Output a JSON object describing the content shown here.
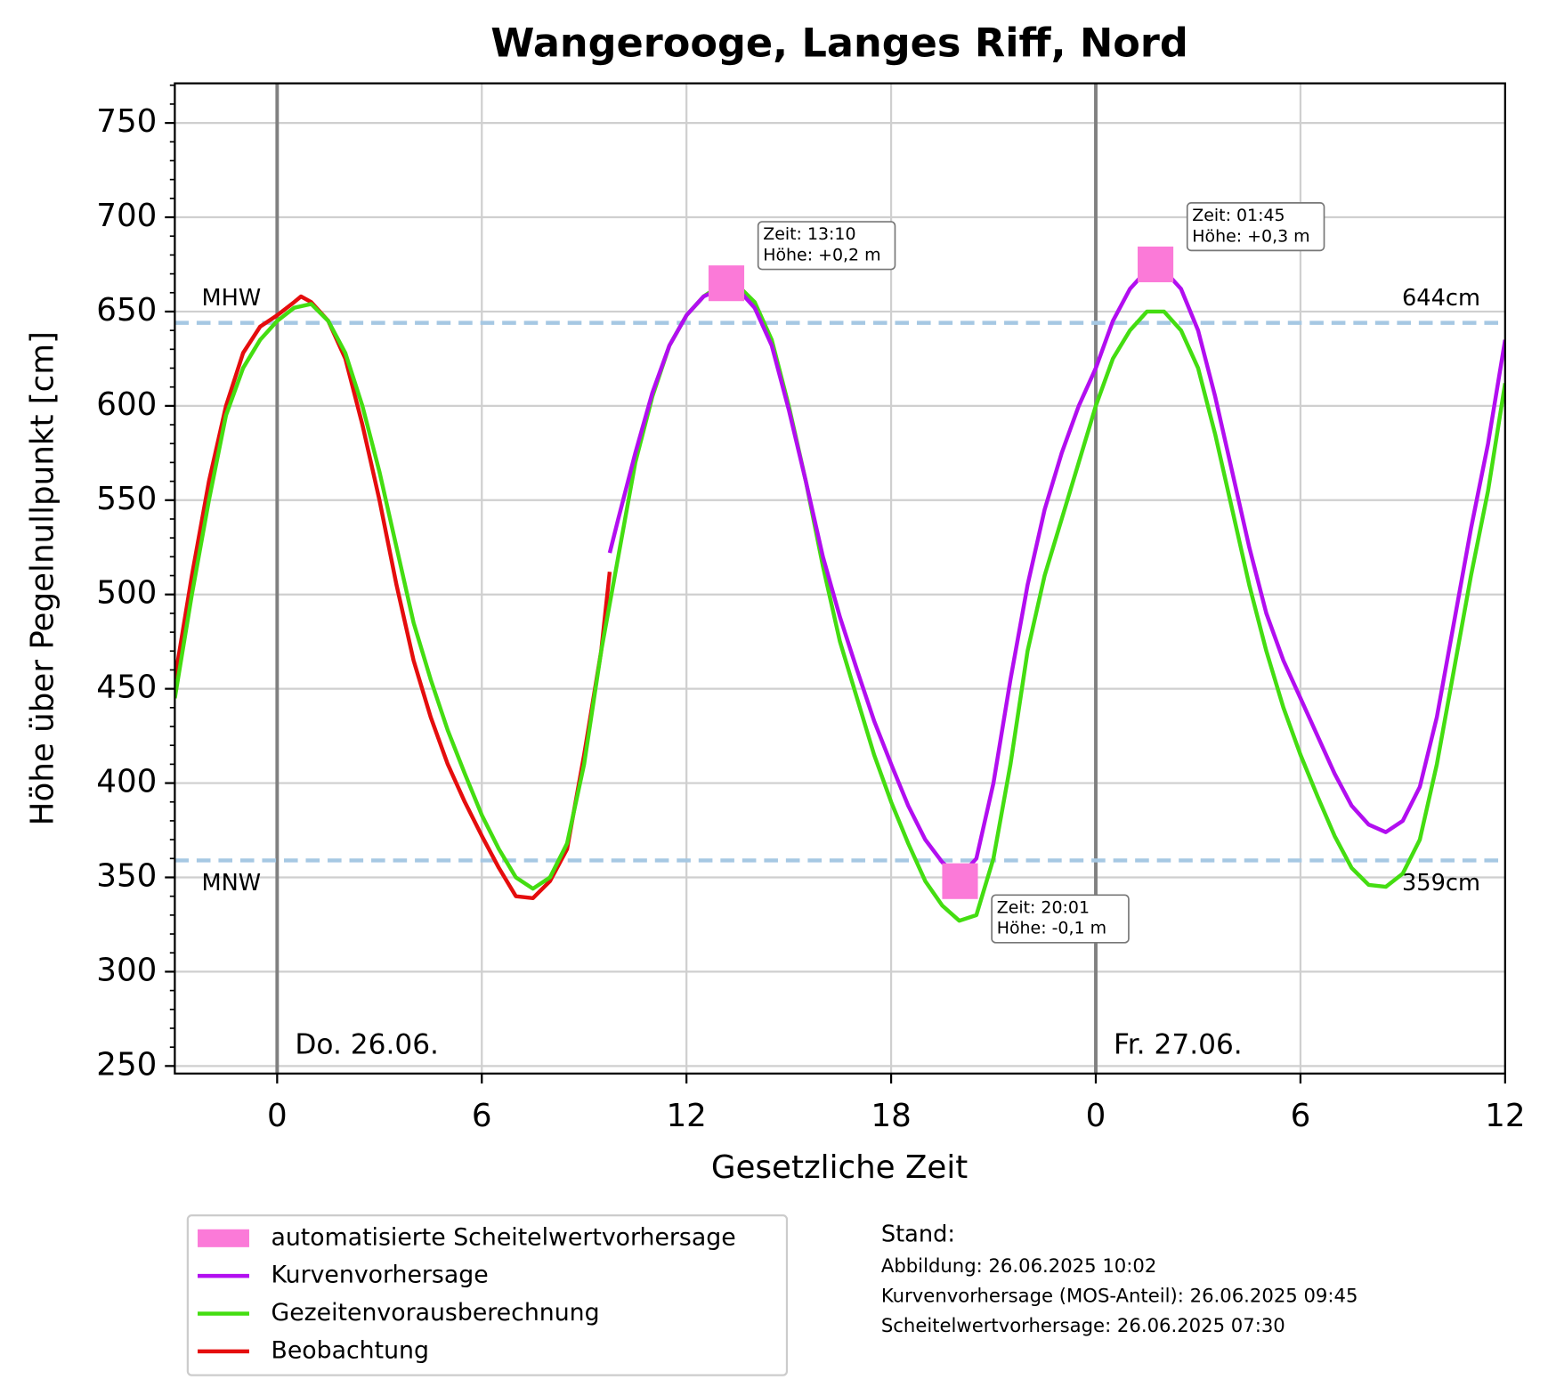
{
  "chart_data": {
    "type": "line",
    "title": "Wangerooge, Langes Riff, Nord",
    "xlabel": "Gesetzliche Zeit",
    "ylabel": "Höhe über Pegelnullpunkt [cm]",
    "xlim": [
      -3,
      36
    ],
    "ylim": [
      246,
      771
    ],
    "xticks": [
      0,
      6,
      12,
      18,
      {
        "value": 24,
        "label": "0"
      },
      {
        "value": 30,
        "label": "6"
      },
      {
        "value": 36,
        "label": "12"
      }
    ],
    "yticks": [
      250,
      300,
      350,
      400,
      450,
      500,
      550,
      600,
      650,
      700,
      750
    ],
    "yminor": 10,
    "grid": true,
    "series": [
      {
        "name": "automatisierte Scheitelwertvorhersage",
        "color": "#fb7ad8",
        "marker": "square",
        "x": [
          13.17,
          20.02,
          25.75
        ],
        "values": [
          665,
          348,
          675
        ]
      },
      {
        "name": "Kurvenvorhersage",
        "color": "#b20ef0",
        "x": [
          9.75,
          10,
          10.5,
          11,
          11.5,
          12,
          12.5,
          13,
          13.5,
          14,
          14.5,
          15,
          15.5,
          16,
          16.5,
          17,
          17.5,
          18,
          18.5,
          19,
          19.5,
          20,
          20.5,
          21,
          21.5,
          22,
          22.5,
          23,
          23.5,
          24,
          24.5,
          25,
          25.5,
          26,
          26.5,
          27,
          27.5,
          28,
          28.5,
          29,
          29.5,
          30,
          30.5,
          31,
          31.5,
          32,
          32.5,
          33,
          33.5,
          34,
          34.5,
          35,
          35.5,
          36
        ],
        "values": [
          522,
          540,
          575,
          607,
          632,
          648,
          658,
          662,
          662,
          652,
          632,
          598,
          560,
          520,
          488,
          460,
          433,
          410,
          388,
          370,
          358,
          350,
          360,
          400,
          455,
          505,
          545,
          575,
          600,
          620,
          645,
          662,
          672,
          672,
          662,
          640,
          605,
          565,
          525,
          490,
          465,
          445,
          425,
          405,
          388,
          378,
          374,
          380,
          398,
          435,
          485,
          535,
          580,
          635
        ]
      },
      {
        "name": "Gezeitenvorausberechnung",
        "color": "#44dd11",
        "x": [
          -3,
          -2.5,
          -2,
          -1.5,
          -1,
          -0.5,
          0,
          0.5,
          1,
          1.5,
          2,
          2.5,
          3,
          3.5,
          4,
          4.5,
          5,
          5.5,
          6,
          6.5,
          7,
          7.5,
          8,
          8.5,
          9,
          9.5,
          10,
          10.5,
          11,
          11.5,
          12,
          12.5,
          13,
          13.5,
          14,
          14.5,
          15,
          15.5,
          16,
          16.5,
          17,
          17.5,
          18,
          18.5,
          19,
          19.5,
          20,
          20.5,
          21,
          21.5,
          22,
          22.5,
          23,
          23.5,
          24,
          24.5,
          25,
          25.5,
          26,
          26.5,
          27,
          27.5,
          28,
          28.5,
          29,
          29.5,
          30,
          30.5,
          31,
          31.5,
          32,
          32.5,
          33,
          33.5,
          34,
          34.5,
          35,
          35.5,
          36
        ],
        "values": [
          445,
          500,
          550,
          595,
          620,
          635,
          645,
          652,
          654,
          645,
          628,
          600,
          565,
          525,
          485,
          455,
          428,
          405,
          383,
          365,
          350,
          344,
          350,
          368,
          410,
          470,
          520,
          570,
          605,
          632,
          648,
          658,
          664,
          664,
          655,
          635,
          600,
          560,
          515,
          475,
          445,
          415,
          390,
          368,
          348,
          335,
          327,
          330,
          360,
          410,
          470,
          510,
          540,
          570,
          600,
          625,
          640,
          650,
          650,
          640,
          620,
          585,
          545,
          505,
          470,
          440,
          415,
          393,
          372,
          355,
          346,
          345,
          352,
          370,
          410,
          460,
          510,
          555,
          612
        ]
      },
      {
        "name": "Beobachtung",
        "color": "#e50d0d",
        "x": [
          -3,
          -2.5,
          -2,
          -1.5,
          -1,
          -0.5,
          0,
          0.5,
          0.7,
          1,
          1.5,
          2,
          2.5,
          3,
          3.5,
          4,
          4.5,
          5,
          5.5,
          6,
          6.5,
          7,
          7.5,
          8,
          8.5,
          9,
          9.5,
          9.75
        ],
        "values": [
          455,
          510,
          560,
          600,
          628,
          642,
          648,
          655,
          658,
          655,
          645,
          625,
          590,
          550,
          505,
          465,
          435,
          410,
          390,
          372,
          355,
          340,
          339,
          348,
          365,
          415,
          470,
          512
        ]
      }
    ],
    "annotations": [
      {
        "x": 13.17,
        "y": 665,
        "placement": "above",
        "lines": [
          "Zeit: 13:10",
          "Höhe: +0,2 m"
        ]
      },
      {
        "x": 20.02,
        "y": 348,
        "placement": "below",
        "lines": [
          "Zeit: 20:01",
          "Höhe: -0,1 m"
        ]
      },
      {
        "x": 25.75,
        "y": 675,
        "placement": "above",
        "lines": [
          "Zeit: 01:45",
          "Höhe: +0,3 m"
        ]
      }
    ],
    "hlines": [
      {
        "value": 644,
        "label": "MHW",
        "value_label": "644cm"
      },
      {
        "value": 359,
        "label": "MNW",
        "value_label": "359cm"
      }
    ],
    "vlines": [
      {
        "value": 0,
        "label": "Do. 26.06."
      },
      {
        "value": 24,
        "label": "Fr. 27.06."
      }
    ],
    "footnote": {
      "title": "Stand:",
      "lines": [
        "Abbildung: 26.06.2025 10:02",
        "Kurvenvorhersage (MOS-Anteil): 26.06.2025 09:45",
        "Scheitelwertvorhersage: 26.06.2025 07:30"
      ]
    }
  }
}
